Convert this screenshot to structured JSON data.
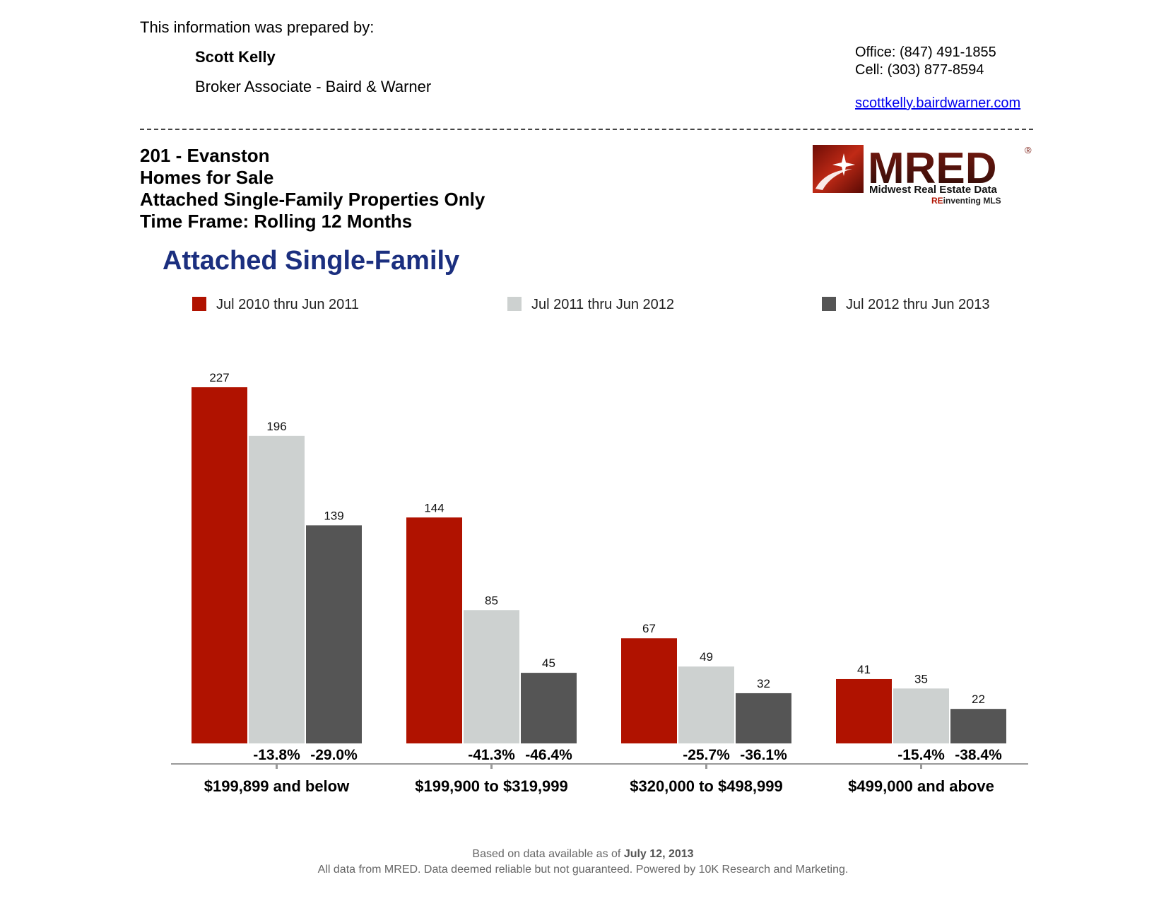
{
  "header": {
    "prepared_by_label": "This information was prepared by:",
    "agent_name": "Scott Kelly",
    "agent_title": "Broker Associate - Baird & Warner",
    "office": "Office: (847) 491-1855",
    "cell": "Cell: (303) 877-8594",
    "website": "scottkelly.bairdwarner.com"
  },
  "report": {
    "area": "201 - Evanston",
    "subject": "Homes for Sale",
    "property_type": "Attached Single-Family Properties Only",
    "time_frame": "Time Frame: Rolling 12 Months"
  },
  "logo": {
    "wordmark": "MRED",
    "registered": "®",
    "tagline": "Midwest Real Estate Data",
    "slogan_prefix": "RE",
    "slogan_rest": "inventing MLS"
  },
  "colors": {
    "series1": "#b01200",
    "series2": "#cdd1d0",
    "series3": "#555555",
    "title": "#1b2f7f"
  },
  "chart_data": {
    "type": "bar",
    "title": "Attached Single-Family",
    "categories": [
      "$199,899 and below",
      "$199,900 to $319,999",
      "$320,000 to $498,999",
      "$499,000 and above"
    ],
    "series": [
      {
        "name": "Jul 2010 thru Jun 2011",
        "values": [
          227,
          144,
          67,
          41
        ]
      },
      {
        "name": "Jul 2011 thru Jun 2012",
        "values": [
          196,
          85,
          49,
          35
        ]
      },
      {
        "name": "Jul 2012 thru Jun 2013",
        "values": [
          139,
          45,
          32,
          22
        ]
      }
    ],
    "pct_change": [
      [
        "-13.8%",
        "-29.0%"
      ],
      [
        "-41.3%",
        "-46.4%"
      ],
      [
        "-25.7%",
        "-36.1%"
      ],
      [
        "-15.4%",
        "-38.4%"
      ]
    ],
    "ylim": [
      0,
      227
    ],
    "legend": "top",
    "grid": false
  },
  "footer": {
    "based_on": "Based on data available as of",
    "date": "July 12, 2013",
    "disclaimer": "All data from MRED. Data deemed reliable but not guaranteed. Powered by 10K Research and Marketing."
  }
}
